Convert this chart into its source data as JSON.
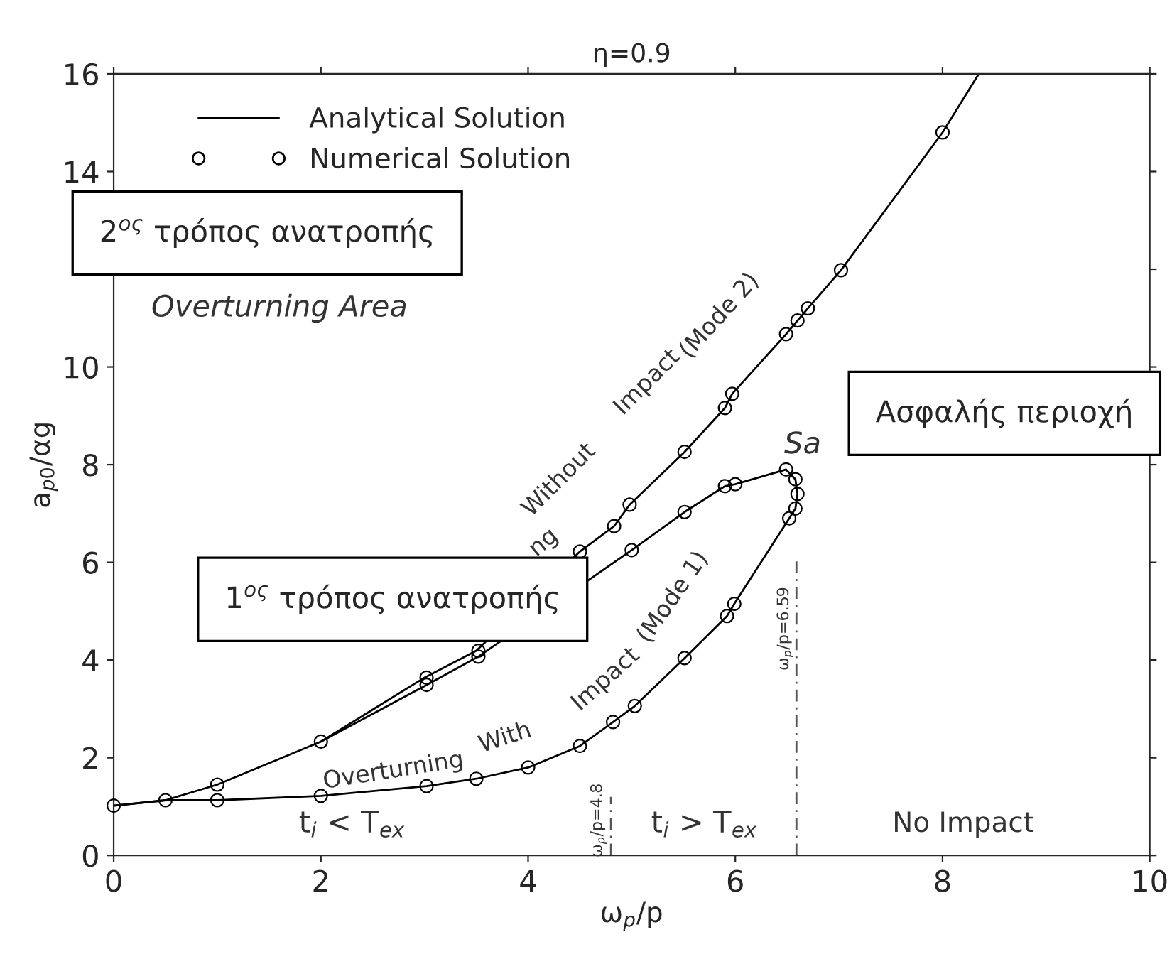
{
  "chart_data": {
    "type": "line",
    "title": "η=0.9",
    "xlabel": "ω$_{p}$/p",
    "ylabel": "a$_{p0}$/αg",
    "xlim": [
      0,
      10
    ],
    "xticks": [
      0,
      2,
      4,
      6,
      8,
      10
    ],
    "ylim": [
      0,
      16
    ],
    "yticks": [
      0,
      2,
      4,
      6,
      8,
      10,
      {
        "value": 12,
        "label": null
      },
      14,
      16
    ],
    "grid": false,
    "legend": "top left",
    "series": [
      {
        "name": "Analytical Solution",
        "color": "#000000",
        "line_style": "solid",
        "marker": "none",
        "x": [
          0,
          0.5,
          1,
          2,
          3,
          3.5,
          4.5,
          4.83,
          4.98,
          5.51,
          5.9,
          5.97,
          6.49,
          6.7,
          7.02,
          8.0,
          8.35
        ],
        "values": [
          1.02,
          1.13,
          1.45,
          2.33,
          3.64,
          4.19,
          6.22,
          6.74,
          7.18,
          8.26,
          9.16,
          9.45,
          10.67,
          11.2,
          11.98,
          14.8,
          16
        ]
      },
      {
        "color": "#000000",
        "line_style": "solid",
        "marker": "none",
        "x": [
          0,
          0.5,
          1,
          2,
          3.02,
          3.5,
          4.0,
          4.5,
          4.82,
          5.03,
          5.51,
          5.92,
          5.99,
          6.52,
          6.58,
          6.6,
          6.58,
          6.49,
          6.0,
          5.9,
          5.51,
          5.0,
          3.52,
          3.02,
          2.0
        ],
        "values": [
          1.02,
          1.13,
          1.13,
          1.22,
          1.42,
          1.57,
          1.8,
          2.24,
          2.73,
          3.06,
          4.04,
          4.9,
          5.15,
          6.9,
          7.1,
          7.4,
          7.7,
          7.9,
          7.6,
          7.56,
          7.03,
          6.25,
          4.07,
          3.49,
          2.33
        ]
      },
      {
        "name": "Numerical Solution",
        "type": "scatter",
        "color": "#000000",
        "marker": "circle",
        "x": [
          0,
          0.5,
          1,
          2,
          3.02,
          3.52,
          4.5,
          4.83,
          4.98,
          5.51,
          5.9,
          5.97,
          6.49,
          6.6,
          6.7,
          7.02,
          8.0,
          1,
          3.02,
          3.52,
          5.0,
          5.51,
          5.9,
          6.0,
          6.49,
          6.58,
          6.6,
          6.58,
          6.52,
          5.99,
          5.92,
          5.51,
          5.03,
          4.82,
          4.5,
          4.0,
          3.5,
          3.02,
          2.0
        ],
        "values": [
          1.02,
          1.13,
          1.45,
          2.33,
          3.64,
          4.19,
          6.22,
          6.74,
          7.18,
          8.26,
          9.16,
          9.45,
          10.67,
          10.95,
          11.2,
          11.98,
          14.8,
          1.13,
          3.49,
          4.07,
          6.25,
          7.03,
          7.56,
          7.6,
          7.9,
          7.7,
          7.4,
          7.1,
          6.9,
          5.15,
          4.9,
          4.04,
          3.06,
          2.73,
          2.24,
          1.8,
          1.57,
          1.42,
          1.22
        ]
      },
      {
        "color": "#555555",
        "line_style": "dashed",
        "marker": "none",
        "x": [
          4.8,
          4.8
        ],
        "values": [
          0,
          1.2
        ]
      },
      {
        "color": "#555555",
        "line_style": "dashed",
        "marker": "none",
        "x": [
          6.59,
          6.59
        ],
        "values": [
          0,
          6.1
        ]
      }
    ],
    "annotations": [
      "Overturning Area",
      "2$^{ος}$ τρόπος ανατροπής",
      "1$^{ος}$ τρόπος ανατροπής",
      "Ασφαλής περιοχή",
      "Sa",
      "t$_{i}$ < T$_{ex}$",
      "t$_{i}$ > T$_{ex}$",
      "No Impact",
      "Overturning",
      "With",
      "Impact",
      "(Mode 1)",
      "ng",
      "Without",
      "Impact",
      "(Mode 2)",
      "ω$_{p}$/p=4.8",
      "ω$_{p}$/p=6.59"
    ]
  }
}
